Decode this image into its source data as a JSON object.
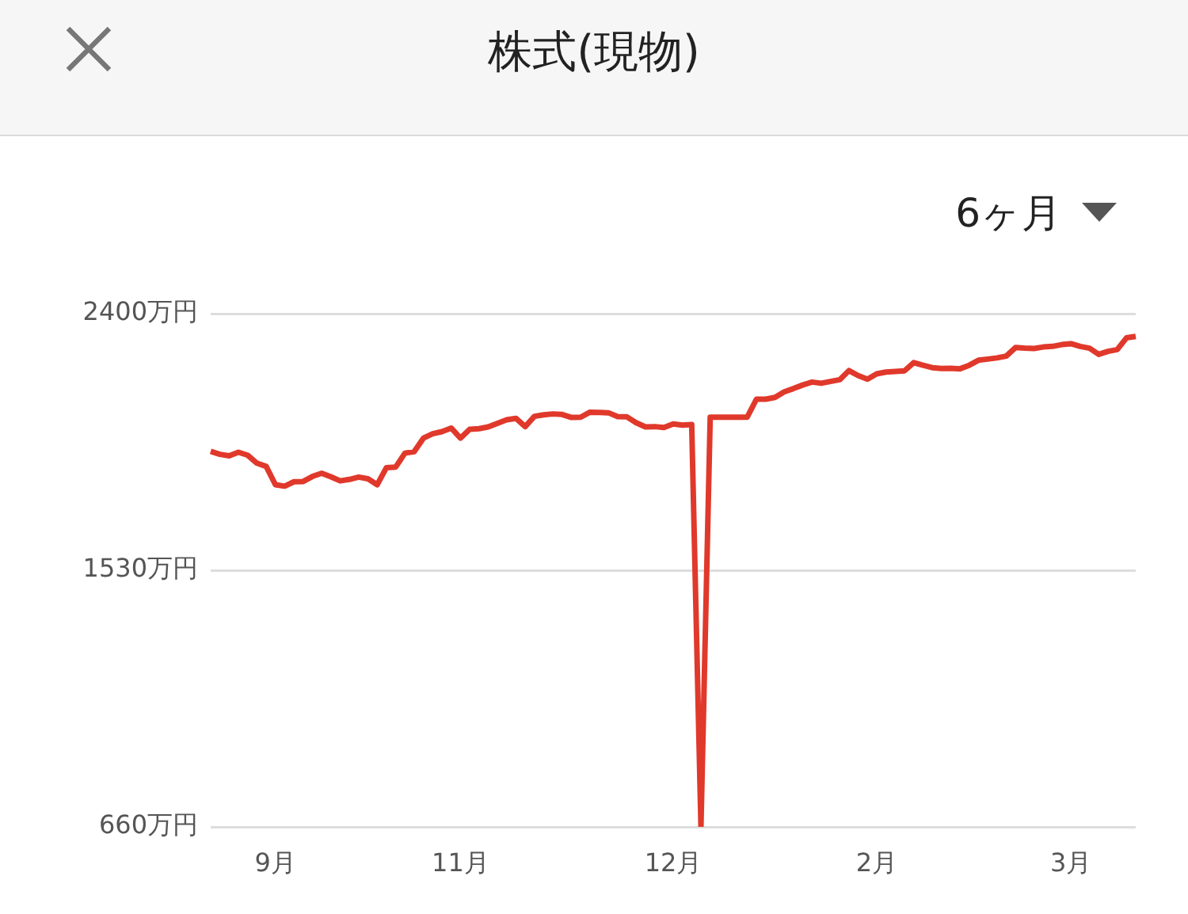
{
  "chart_data": {
    "type": "line",
    "title": "株式(現物)",
    "annotations": [
      "6ヶ月"
    ],
    "categories": [
      null,
      null,
      null,
      null,
      null,
      null,
      null,
      "9月",
      null,
      null,
      null,
      null,
      null,
      null,
      null,
      null,
      null,
      null,
      null,
      null,
      null,
      null,
      null,
      null,
      null,
      null,
      null,
      "11月",
      null,
      null,
      null,
      null,
      null,
      null,
      null,
      null,
      null,
      null,
      null,
      null,
      null,
      null,
      null,
      null,
      null,
      null,
      null,
      null,
      null,
      null,
      "12月",
      null,
      null,
      null,
      null,
      null,
      null,
      null,
      null,
      null,
      null,
      null,
      null,
      null,
      null,
      null,
      null,
      null,
      null,
      null,
      null,
      null,
      "2月",
      null,
      null,
      null,
      null,
      null,
      null,
      null,
      null,
      null,
      null,
      null,
      null,
      null,
      null,
      null,
      null,
      null,
      null,
      null,
      null,
      "3月",
      null,
      null,
      null,
      null,
      null,
      null,
      null
    ],
    "series": [
      {
        "color": "#e0392b",
        "values": [
          1933,
          1923,
          1918,
          1930,
          1920,
          1893,
          1882,
          1820,
          1815,
          1830,
          1831,
          1848,
          1859,
          1847,
          1833,
          1838,
          1846,
          1840,
          1820,
          1878,
          1880,
          1927,
          1932,
          1978,
          1993,
          2000,
          2012,
          1978,
          2008,
          2010,
          2016,
          2028,
          2040,
          2045,
          2017,
          2052,
          2057,
          2060,
          2058,
          2048,
          2049,
          2066,
          2065,
          2064,
          2051,
          2050,
          2030,
          2016,
          2017,
          2014,
          2026,
          2022,
          2024,
          660,
          2049,
          2049,
          2049,
          2049,
          2049,
          2110,
          2110,
          2116,
          2135,
          2146,
          2158,
          2168,
          2164,
          2170,
          2176,
          2207,
          2190,
          2178,
          2196,
          2202,
          2204,
          2206,
          2234,
          2225,
          2217,
          2214,
          2215,
          2213,
          2225,
          2242,
          2246,
          2250,
          2256,
          2285,
          2283,
          2282,
          2287,
          2289,
          2295,
          2298,
          2289,
          2283,
          2262,
          2272,
          2278,
          2318,
          2323
        ]
      }
    ],
    "ylim": [
      660,
      2400
    ],
    "yticks": [
      {
        "value": 660,
        "label": "660万円"
      },
      {
        "value": 1530,
        "label": "1530万円"
      },
      {
        "value": 2400,
        "label": "2400万円"
      }
    ],
    "grid": "y",
    "legend": false,
    "marker": "none",
    "line_style": "solid"
  }
}
